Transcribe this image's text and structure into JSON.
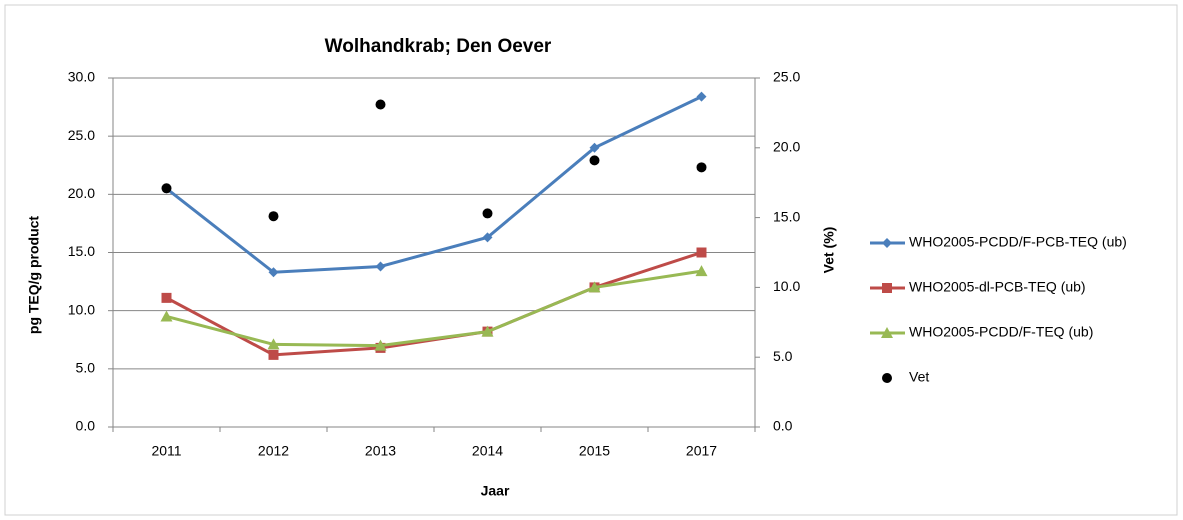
{
  "chart_data": {
    "type": "line",
    "title": "Wolhandkrab; Den Oever",
    "x_label": "Jaar",
    "y_label": "pg TEQ/g product",
    "y2_label": "Vet (%)",
    "categories": [
      "2011",
      "2012",
      "2013",
      "2014",
      "2015",
      "2017"
    ],
    "series": [
      {
        "name": "WHO2005-PCDD/F-PCB-TEQ (ub)",
        "color": "#4a7ebb",
        "marker": "diamond",
        "line": true,
        "values": [
          20.5,
          13.3,
          13.8,
          16.3,
          24.0,
          28.4
        ]
      },
      {
        "name": "WHO2005-dl-PCB-TEQ (ub)",
        "color": "#be4b48",
        "marker": "square",
        "line": true,
        "values": [
          11.1,
          6.2,
          6.8,
          8.2,
          12.0,
          15.0
        ]
      },
      {
        "name": "WHO2005-PCDD/F-TEQ (ub)",
        "color": "#98b954",
        "marker": "triangle",
        "line": true,
        "values": [
          9.5,
          7.1,
          7.0,
          8.2,
          12.0,
          13.4
        ]
      },
      {
        "name": "Vet",
        "color": "#000000",
        "marker": "circle",
        "line": false,
        "axis": "y2",
        "values": [
          17.1,
          15.1,
          23.1,
          15.3,
          19.1,
          18.6
        ]
      }
    ],
    "ylim": [
      0,
      30
    ],
    "yticks": [
      {
        "value": 0,
        "label": "0.0"
      },
      {
        "value": 5,
        "label": "5.0"
      },
      {
        "value": 10,
        "label": "10.0"
      },
      {
        "value": 15,
        "label": "15.0"
      },
      {
        "value": 20,
        "label": "20.0"
      },
      {
        "value": 25,
        "label": "25.0"
      },
      {
        "value": 30,
        "label": "30.0"
      }
    ],
    "y2lim": [
      0,
      25
    ],
    "y2ticks": [
      {
        "value": 0,
        "label": "0.0"
      },
      {
        "value": 5,
        "label": "5.0"
      },
      {
        "value": 10,
        "label": "10.0"
      },
      {
        "value": 15,
        "label": "15.0"
      },
      {
        "value": 20,
        "label": "20.0"
      },
      {
        "value": 25,
        "label": "25.0"
      }
    ],
    "grid": true,
    "legend": "right"
  }
}
